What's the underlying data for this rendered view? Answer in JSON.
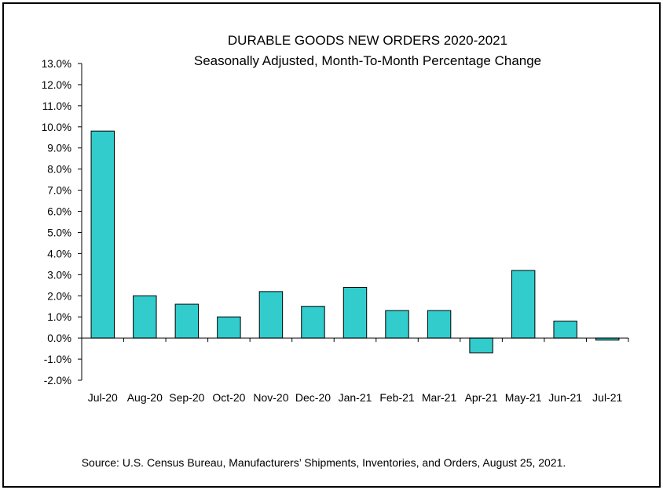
{
  "chart_data": {
    "type": "bar",
    "title": "DURABLE GOODS NEW ORDERS 2020-2021",
    "subtitle": "Seasonally Adjusted,  Month-To-Month Percentage Change",
    "xlabel": "",
    "ylabel": "",
    "categories": [
      "Jul-20",
      "Aug-20",
      "Sep-20",
      "Oct-20",
      "Nov-20",
      "Dec-20",
      "Jan-21",
      "Feb-21",
      "Mar-21",
      "Apr-21",
      "May-21",
      "Jun-21",
      "Jul-21"
    ],
    "values": [
      9.8,
      2.0,
      1.6,
      1.0,
      2.2,
      1.5,
      2.4,
      1.3,
      1.3,
      -0.7,
      3.2,
      0.8,
      -0.1
    ],
    "ylim": [
      -2.0,
      13.0
    ],
    "ytick_step": 1.0,
    "ytick_labels": [
      "13.0%",
      "12.0%",
      "11.0%",
      "10.0%",
      "9.0%",
      "8.0%",
      "7.0%",
      "6.0%",
      "5.0%",
      "4.0%",
      "3.0%",
      "2.0%",
      "1.0%",
      "0.0%",
      "-1.0%",
      "-2.0%"
    ],
    "grid": false,
    "legend": "none",
    "bar_color": "#33CCCC",
    "bar_edge_color": "#000000",
    "source": "Source: U.S. Census Bureau, Manufacturers’ Shipments, Inventories, and Orders, August 25, 2021."
  }
}
